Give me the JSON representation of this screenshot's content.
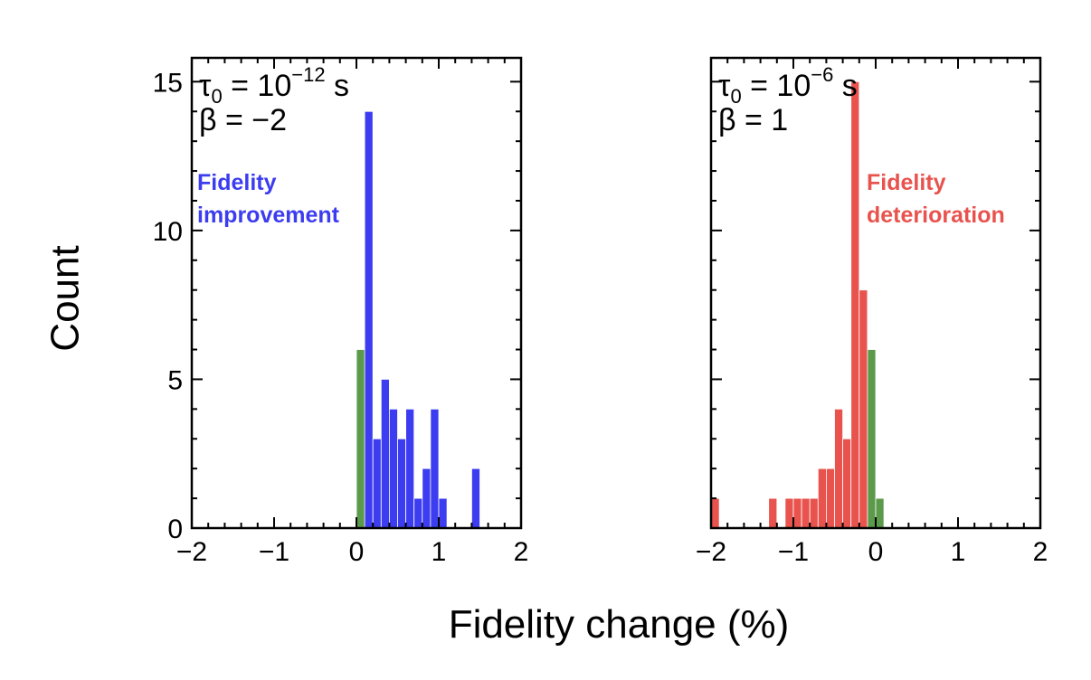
{
  "figure": {
    "xlabel": "Fidelity change (%)",
    "ylabel": "Count"
  },
  "colors": {
    "improvement": "#3c3cf0",
    "deterioration": "#e8534e",
    "neutral": "#5a9a4a"
  },
  "chart_data": [
    {
      "type": "bar",
      "panel": "left",
      "param_tau": "τ0 = 10^−12 s",
      "param_beta": "β = −2",
      "annotation": [
        "Fidelity",
        "improvement"
      ],
      "xlim": [
        -2.0,
        2.0
      ],
      "ylim": [
        0,
        15.8
      ],
      "xticks": [
        -2,
        -1,
        0,
        1,
        2
      ],
      "xtick_labels": [
        "−2",
        "−1",
        "0",
        "1",
        "2"
      ],
      "yticks": [
        0,
        5,
        10,
        15
      ],
      "ytick_labels": [
        "0",
        "5",
        "10",
        "15"
      ],
      "bin_width": 0.1,
      "series": [
        {
          "category": "improvement",
          "bins": [
            {
              "x": 0.1,
              "count": 14
            },
            {
              "x": 0.2,
              "count": 3
            },
            {
              "x": 0.3,
              "count": 5
            },
            {
              "x": 0.4,
              "count": 4
            },
            {
              "x": 0.5,
              "count": 3
            },
            {
              "x": 0.6,
              "count": 4
            },
            {
              "x": 0.7,
              "count": 1
            },
            {
              "x": 0.8,
              "count": 2
            },
            {
              "x": 0.9,
              "count": 4
            },
            {
              "x": 1.0,
              "count": 1
            },
            {
              "x": 1.4,
              "count": 2
            }
          ]
        },
        {
          "category": "neutral",
          "bins": [
            {
              "x": 0.0,
              "count": 6
            }
          ]
        }
      ]
    },
    {
      "type": "bar",
      "panel": "right",
      "param_tau": "τ0 = 10^−6 s",
      "param_beta": "β = 1",
      "annotation": [
        "Fidelity",
        "deterioration"
      ],
      "xlim": [
        -2.0,
        2.0
      ],
      "ylim": [
        0,
        15.8
      ],
      "xticks": [
        -2,
        -1,
        0,
        1,
        2
      ],
      "xtick_labels": [
        "−2",
        "−1",
        "0",
        "1",
        "2"
      ],
      "yticks": [
        0,
        5,
        10,
        15
      ],
      "ytick_labels": [
        "",
        "",
        "",
        ""
      ],
      "bin_width": 0.1,
      "series": [
        {
          "category": "deterioration",
          "bins": [
            {
              "x": -2.0,
              "count": 1
            },
            {
              "x": -1.3,
              "count": 1
            },
            {
              "x": -1.1,
              "count": 1
            },
            {
              "x": -1.0,
              "count": 1
            },
            {
              "x": -0.9,
              "count": 1
            },
            {
              "x": -0.8,
              "count": 1
            },
            {
              "x": -0.7,
              "count": 2
            },
            {
              "x": -0.6,
              "count": 2
            },
            {
              "x": -0.5,
              "count": 4
            },
            {
              "x": -0.4,
              "count": 3
            },
            {
              "x": -0.3,
              "count": 15
            },
            {
              "x": -0.2,
              "count": 8
            }
          ]
        },
        {
          "category": "neutral",
          "bins": [
            {
              "x": -0.1,
              "count": 6
            },
            {
              "x": 0.0,
              "count": 1
            }
          ]
        }
      ]
    }
  ]
}
